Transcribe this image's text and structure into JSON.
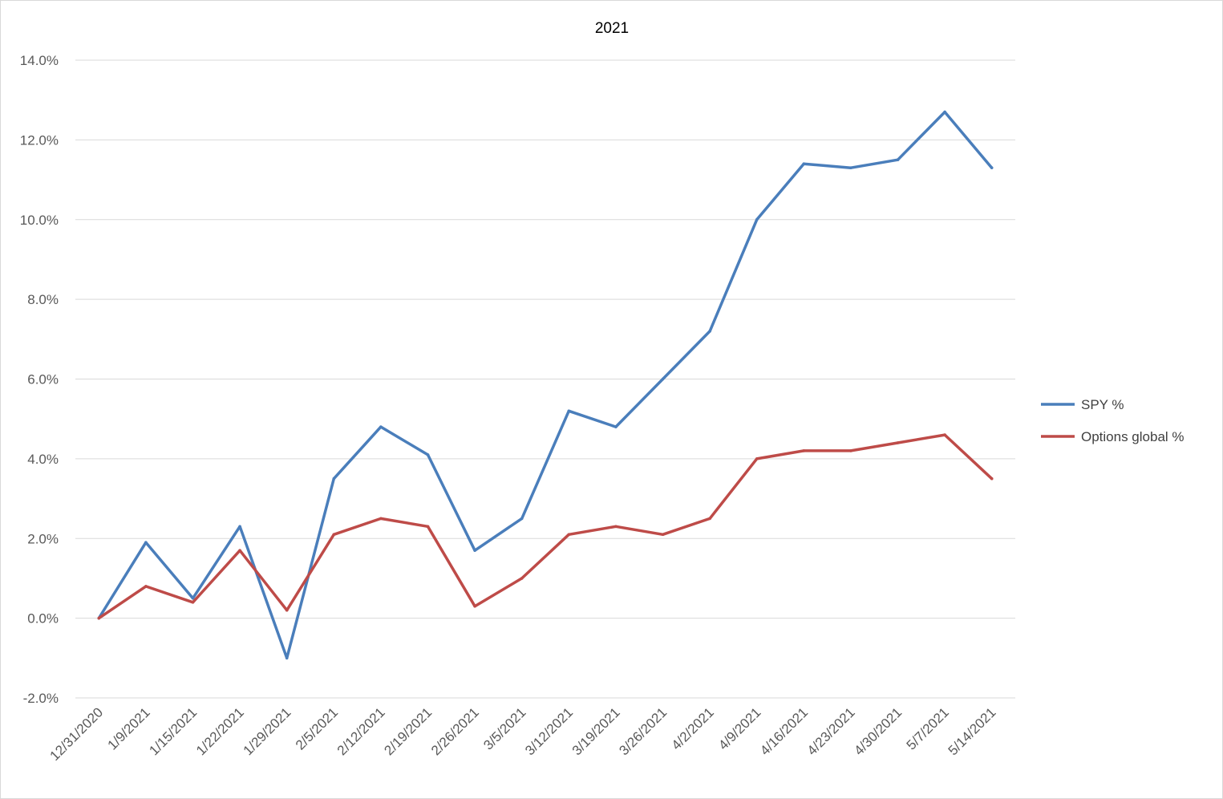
{
  "chart_data": {
    "type": "line",
    "title": "2021",
    "xlabel": "",
    "ylabel": "",
    "ylim": [
      -0.02,
      0.14
    ],
    "y_tick_step": 0.02,
    "y_tick_labels": [
      "-2.0%",
      "0.0%",
      "2.0%",
      "4.0%",
      "6.0%",
      "8.0%",
      "10.0%",
      "12.0%",
      "14.0%"
    ],
    "grid": true,
    "legend_position": "right",
    "categories": [
      "12/31/2020",
      "1/9/2021",
      "1/15/2021",
      "1/22/2021",
      "1/29/2021",
      "2/5/2021",
      "2/12/2021",
      "2/19/2021",
      "2/26/2021",
      "3/5/2021",
      "3/12/2021",
      "3/19/2021",
      "3/26/2021",
      "4/2/2021",
      "4/9/2021",
      "4/16/2021",
      "4/23/2021",
      "4/30/2021",
      "5/7/2021",
      "5/14/2021"
    ],
    "series": [
      {
        "name": "SPY %",
        "color": "#4a7ebb",
        "values": [
          0.0,
          0.019,
          0.005,
          0.023,
          -0.01,
          0.035,
          0.048,
          0.041,
          0.017,
          0.025,
          0.052,
          0.048,
          0.06,
          0.072,
          0.1,
          0.114,
          0.113,
          0.115,
          0.127,
          0.113
        ]
      },
      {
        "name": "Options global %",
        "color": "#be4b48",
        "values": [
          0.0,
          0.008,
          0.004,
          0.017,
          0.002,
          0.021,
          0.025,
          0.023,
          0.003,
          0.01,
          0.021,
          0.023,
          0.021,
          0.025,
          0.04,
          0.042,
          0.042,
          0.044,
          0.046,
          0.035
        ]
      }
    ]
  }
}
